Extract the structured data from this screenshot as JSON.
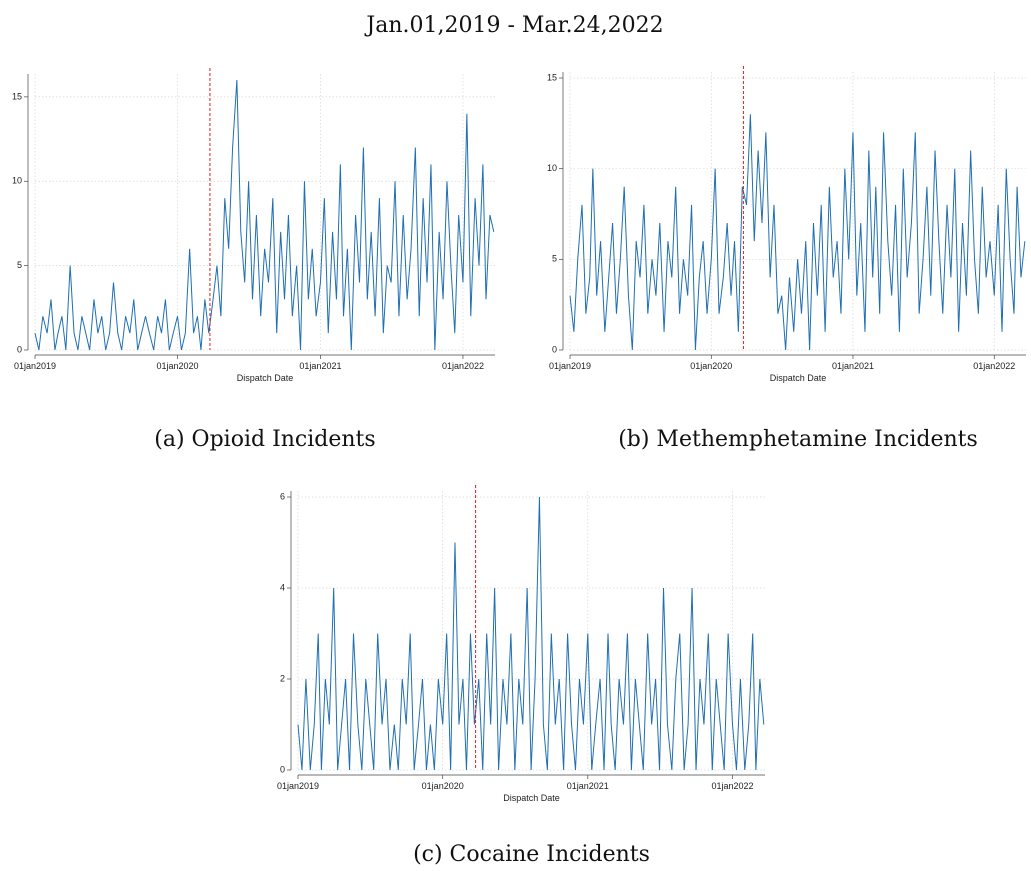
{
  "figure_title": "Jan.01,2019 - Mar.24,2022",
  "chart_data": [
    {
      "type": "line",
      "caption": "(a) Opioid Incidents",
      "xlabel": "Dispatch Date",
      "color": "#1f6fb2",
      "grid": true,
      "vline": "2020-03-24",
      "vline_color": "#e31a1c",
      "xlim": [
        "2019-01-01",
        "2022-03-24"
      ],
      "xticks": [
        {
          "value": "2019-01-01",
          "label": "01jan2019"
        },
        {
          "value": "2020-01-01",
          "label": "01jan2020"
        },
        {
          "value": "2021-01-01",
          "label": "01jan2021"
        },
        {
          "value": "2022-01-01",
          "label": "01jan2022"
        }
      ],
      "ylim": [
        0,
        16
      ],
      "yticks": [
        0,
        5,
        10,
        15
      ],
      "x": [
        "2019-01-01",
        "2019-01-11",
        "2019-01-21",
        "2019-02-01",
        "2019-02-11",
        "2019-02-21",
        "2019-03-01",
        "2019-03-11",
        "2019-03-21",
        "2019-04-01",
        "2019-04-11",
        "2019-04-21",
        "2019-05-01",
        "2019-05-11",
        "2019-05-21",
        "2019-06-01",
        "2019-06-11",
        "2019-06-21",
        "2019-07-01",
        "2019-07-11",
        "2019-07-21",
        "2019-08-01",
        "2019-08-11",
        "2019-08-21",
        "2019-09-01",
        "2019-09-11",
        "2019-09-21",
        "2019-10-01",
        "2019-10-11",
        "2019-10-21",
        "2019-11-01",
        "2019-11-11",
        "2019-11-21",
        "2019-12-01",
        "2019-12-11",
        "2019-12-21",
        "2020-01-01",
        "2020-01-11",
        "2020-01-21",
        "2020-02-01",
        "2020-02-11",
        "2020-02-21",
        "2020-03-01",
        "2020-03-11",
        "2020-03-21",
        "2020-04-01",
        "2020-04-11",
        "2020-04-21",
        "2020-05-01",
        "2020-05-11",
        "2020-05-21",
        "2020-06-01",
        "2020-06-11",
        "2020-06-21",
        "2020-07-01",
        "2020-07-11",
        "2020-07-21",
        "2020-08-01",
        "2020-08-11",
        "2020-08-21",
        "2020-09-01",
        "2020-09-11",
        "2020-09-21",
        "2020-10-01",
        "2020-10-11",
        "2020-10-21",
        "2020-11-01",
        "2020-11-11",
        "2020-11-21",
        "2020-12-01",
        "2020-12-11",
        "2020-12-21",
        "2021-01-01",
        "2021-01-11",
        "2021-01-21",
        "2021-02-01",
        "2021-02-11",
        "2021-02-21",
        "2021-03-01",
        "2021-03-11",
        "2021-03-21",
        "2021-04-01",
        "2021-04-11",
        "2021-04-21",
        "2021-05-01",
        "2021-05-11",
        "2021-05-21",
        "2021-06-01",
        "2021-06-11",
        "2021-06-21",
        "2021-07-01",
        "2021-07-11",
        "2021-07-21",
        "2021-08-01",
        "2021-08-11",
        "2021-08-21",
        "2021-09-01",
        "2021-09-11",
        "2021-09-21",
        "2021-10-01",
        "2021-10-11",
        "2021-10-21",
        "2021-11-01",
        "2021-11-11",
        "2021-11-21",
        "2021-12-01",
        "2021-12-11",
        "2021-12-21",
        "2022-01-01",
        "2022-01-11",
        "2022-01-21",
        "2022-02-01",
        "2022-02-11",
        "2022-02-21",
        "2022-03-01",
        "2022-03-11",
        "2022-03-21"
      ],
      "values": [
        1,
        0,
        2,
        1,
        3,
        0,
        1,
        2,
        0,
        5,
        1,
        0,
        2,
        1,
        0,
        3,
        1,
        2,
        0,
        1,
        4,
        1,
        0,
        2,
        1,
        3,
        0,
        1,
        2,
        1,
        0,
        2,
        1,
        3,
        0,
        1,
        2,
        0,
        1,
        6,
        1,
        2,
        0,
        3,
        1,
        3,
        5,
        2,
        9,
        6,
        12,
        16,
        7,
        4,
        10,
        3,
        8,
        2,
        6,
        4,
        9,
        1,
        7,
        3,
        8,
        2,
        5,
        0,
        10,
        3,
        6,
        2,
        4,
        9,
        1,
        7,
        3,
        11,
        2,
        6,
        0,
        8,
        4,
        12,
        3,
        7,
        2,
        9,
        1,
        5,
        4,
        10,
        2,
        8,
        3,
        6,
        12,
        2,
        9,
        4,
        11,
        0,
        7,
        3,
        10,
        5,
        1,
        8,
        4,
        14,
        2,
        9,
        5,
        11,
        3,
        8,
        7
      ]
    },
    {
      "type": "line",
      "caption": "(b) Methemphetamine Incidents",
      "xlabel": "Dispatch Date",
      "color": "#1f6fb2",
      "grid": true,
      "vline": "2020-03-24",
      "vline_color": "#e31a1c",
      "xlim": [
        "2019-01-01",
        "2022-03-24"
      ],
      "xticks": [
        {
          "value": "2019-01-01",
          "label": "01jan2019"
        },
        {
          "value": "2020-01-01",
          "label": "01jan2020"
        },
        {
          "value": "2021-01-01",
          "label": "01jan2021"
        },
        {
          "value": "2022-01-01",
          "label": "01jan2022"
        }
      ],
      "ylim": [
        0,
        15
      ],
      "yticks": [
        0,
        5,
        10,
        15
      ],
      "x": [
        "2019-01-01",
        "2019-01-11",
        "2019-01-21",
        "2019-02-01",
        "2019-02-11",
        "2019-02-21",
        "2019-03-01",
        "2019-03-11",
        "2019-03-21",
        "2019-04-01",
        "2019-04-11",
        "2019-04-21",
        "2019-05-01",
        "2019-05-11",
        "2019-05-21",
        "2019-06-01",
        "2019-06-11",
        "2019-06-21",
        "2019-07-01",
        "2019-07-11",
        "2019-07-21",
        "2019-08-01",
        "2019-08-11",
        "2019-08-21",
        "2019-09-01",
        "2019-09-11",
        "2019-09-21",
        "2019-10-01",
        "2019-10-11",
        "2019-10-21",
        "2019-11-01",
        "2019-11-11",
        "2019-11-21",
        "2019-12-01",
        "2019-12-11",
        "2019-12-21",
        "2020-01-01",
        "2020-01-11",
        "2020-01-21",
        "2020-02-01",
        "2020-02-11",
        "2020-02-21",
        "2020-03-01",
        "2020-03-11",
        "2020-03-21",
        "2020-04-01",
        "2020-04-11",
        "2020-04-21",
        "2020-05-01",
        "2020-05-11",
        "2020-05-21",
        "2020-06-01",
        "2020-06-11",
        "2020-06-21",
        "2020-07-01",
        "2020-07-11",
        "2020-07-21",
        "2020-08-01",
        "2020-08-11",
        "2020-08-21",
        "2020-09-01",
        "2020-09-11",
        "2020-09-21",
        "2020-10-01",
        "2020-10-11",
        "2020-10-21",
        "2020-11-01",
        "2020-11-11",
        "2020-11-21",
        "2020-12-01",
        "2020-12-11",
        "2020-12-21",
        "2021-01-01",
        "2021-01-11",
        "2021-01-21",
        "2021-02-01",
        "2021-02-11",
        "2021-02-21",
        "2021-03-01",
        "2021-03-11",
        "2021-03-21",
        "2021-04-01",
        "2021-04-11",
        "2021-04-21",
        "2021-05-01",
        "2021-05-11",
        "2021-05-21",
        "2021-06-01",
        "2021-06-11",
        "2021-06-21",
        "2021-07-01",
        "2021-07-11",
        "2021-07-21",
        "2021-08-01",
        "2021-08-11",
        "2021-08-21",
        "2021-09-01",
        "2021-09-11",
        "2021-09-21",
        "2021-10-01",
        "2021-10-11",
        "2021-10-21",
        "2021-11-01",
        "2021-11-11",
        "2021-11-21",
        "2021-12-01",
        "2021-12-11",
        "2021-12-21",
        "2022-01-01",
        "2022-01-11",
        "2022-01-21",
        "2022-02-01",
        "2022-02-11",
        "2022-02-21",
        "2022-03-01",
        "2022-03-11",
        "2022-03-21"
      ],
      "values": [
        3,
        1,
        5,
        8,
        2,
        4,
        10,
        3,
        6,
        1,
        4,
        7,
        2,
        5,
        9,
        3,
        0,
        6,
        4,
        8,
        2,
        5,
        3,
        7,
        1,
        6,
        4,
        9,
        2,
        5,
        3,
        8,
        0,
        4,
        6,
        2,
        5,
        10,
        2,
        4,
        7,
        3,
        6,
        1,
        9,
        8,
        13,
        6,
        11,
        7,
        12,
        4,
        8,
        2,
        3,
        0,
        4,
        1,
        5,
        2,
        6,
        0,
        7,
        3,
        8,
        1,
        9,
        4,
        6,
        2,
        10,
        5,
        12,
        3,
        7,
        1,
        11,
        4,
        9,
        2,
        12,
        6,
        3,
        8,
        1,
        10,
        4,
        7,
        12,
        2,
        5,
        9,
        3,
        11,
        6,
        2,
        8,
        4,
        10,
        1,
        7,
        3,
        11,
        5,
        2,
        9,
        4,
        6,
        3,
        8,
        1,
        10,
        5,
        2,
        9,
        4,
        6
      ]
    },
    {
      "type": "line",
      "caption": "(c) Cocaine Incidents",
      "xlabel": "Dispatch Date",
      "color": "#1f6fb2",
      "grid": true,
      "vline": "2020-03-24",
      "vline_color": "#e31a1c",
      "xlim": [
        "2019-01-01",
        "2022-03-24"
      ],
      "xticks": [
        {
          "value": "2019-01-01",
          "label": "01jan2019"
        },
        {
          "value": "2020-01-01",
          "label": "01jan2020"
        },
        {
          "value": "2021-01-01",
          "label": "01jan2021"
        },
        {
          "value": "2022-01-01",
          "label": "01jan2022"
        }
      ],
      "ylim": [
        0,
        6
      ],
      "yticks": [
        0,
        2,
        4,
        6
      ],
      "x": [
        "2019-01-01",
        "2019-01-11",
        "2019-01-21",
        "2019-02-01",
        "2019-02-11",
        "2019-02-21",
        "2019-03-01",
        "2019-03-11",
        "2019-03-21",
        "2019-04-01",
        "2019-04-11",
        "2019-04-21",
        "2019-05-01",
        "2019-05-11",
        "2019-05-21",
        "2019-06-01",
        "2019-06-11",
        "2019-06-21",
        "2019-07-01",
        "2019-07-11",
        "2019-07-21",
        "2019-08-01",
        "2019-08-11",
        "2019-08-21",
        "2019-09-01",
        "2019-09-11",
        "2019-09-21",
        "2019-10-01",
        "2019-10-11",
        "2019-10-21",
        "2019-11-01",
        "2019-11-11",
        "2019-11-21",
        "2019-12-01",
        "2019-12-11",
        "2019-12-21",
        "2020-01-01",
        "2020-01-11",
        "2020-01-21",
        "2020-02-01",
        "2020-02-11",
        "2020-02-21",
        "2020-03-01",
        "2020-03-11",
        "2020-03-21",
        "2020-04-01",
        "2020-04-11",
        "2020-04-21",
        "2020-05-01",
        "2020-05-11",
        "2020-05-21",
        "2020-06-01",
        "2020-06-11",
        "2020-06-21",
        "2020-07-01",
        "2020-07-11",
        "2020-07-21",
        "2020-08-01",
        "2020-08-11",
        "2020-08-21",
        "2020-09-01",
        "2020-09-11",
        "2020-09-21",
        "2020-10-01",
        "2020-10-11",
        "2020-10-21",
        "2020-11-01",
        "2020-11-11",
        "2020-11-21",
        "2020-12-01",
        "2020-12-11",
        "2020-12-21",
        "2021-01-01",
        "2021-01-11",
        "2021-01-21",
        "2021-02-01",
        "2021-02-11",
        "2021-02-21",
        "2021-03-01",
        "2021-03-11",
        "2021-03-21",
        "2021-04-01",
        "2021-04-11",
        "2021-04-21",
        "2021-05-01",
        "2021-05-11",
        "2021-05-21",
        "2021-06-01",
        "2021-06-11",
        "2021-06-21",
        "2021-07-01",
        "2021-07-11",
        "2021-07-21",
        "2021-08-01",
        "2021-08-11",
        "2021-08-21",
        "2021-09-01",
        "2021-09-11",
        "2021-09-21",
        "2021-10-01",
        "2021-10-11",
        "2021-10-21",
        "2021-11-01",
        "2021-11-11",
        "2021-11-21",
        "2021-12-01",
        "2021-12-11",
        "2021-12-21",
        "2022-01-01",
        "2022-01-11",
        "2022-01-21",
        "2022-02-01",
        "2022-02-11",
        "2022-02-21",
        "2022-03-01",
        "2022-03-11",
        "2022-03-21"
      ],
      "values": [
        1,
        0,
        2,
        0,
        1,
        3,
        0,
        2,
        1,
        4,
        0,
        1,
        2,
        0,
        3,
        1,
        0,
        2,
        1,
        0,
        3,
        1,
        2,
        0,
        1,
        0,
        2,
        1,
        3,
        0,
        1,
        2,
        0,
        1,
        0,
        2,
        1,
        3,
        0,
        5,
        1,
        2,
        0,
        3,
        1,
        2,
        0,
        3,
        1,
        4,
        0,
        2,
        1,
        3,
        0,
        2,
        1,
        4,
        0,
        2,
        6,
        1,
        0,
        3,
        1,
        2,
        0,
        3,
        1,
        0,
        2,
        1,
        3,
        0,
        1,
        2,
        0,
        3,
        1,
        0,
        2,
        1,
        3,
        0,
        2,
        1,
        0,
        3,
        1,
        2,
        0,
        4,
        1,
        0,
        2,
        3,
        0,
        1,
        4,
        0,
        2,
        1,
        3,
        0,
        2,
        1,
        0,
        3,
        1,
        0,
        2,
        0,
        1,
        3,
        0,
        2,
        1
      ]
    }
  ]
}
